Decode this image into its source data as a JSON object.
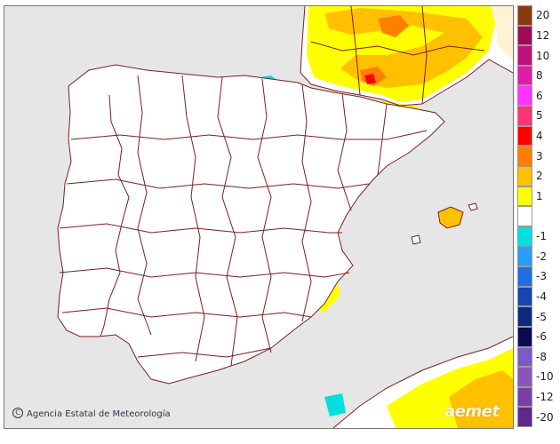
{
  "credit": {
    "text": "Agencia Estatal de Meteorología",
    "icon": "copyright-icon"
  },
  "logo": {
    "text": "aemet"
  },
  "legend": {
    "entries": [
      {
        "label": "20",
        "color": "#8b3a0e"
      },
      {
        "label": "12",
        "color": "#a00a55"
      },
      {
        "label": "10",
        "color": "#c0107a"
      },
      {
        "label": "8",
        "color": "#e01caa"
      },
      {
        "label": "6",
        "color": "#ff33ff"
      },
      {
        "label": "5",
        "color": "#ff3377"
      },
      {
        "label": "4",
        "color": "#ff0000"
      },
      {
        "label": "3",
        "color": "#ff8000"
      },
      {
        "label": "2",
        "color": "#ffc000"
      },
      {
        "label": "1",
        "color": "#ffff00"
      },
      {
        "label": "",
        "color": "#ffffff"
      },
      {
        "label": "-1",
        "color": "#00e0e0"
      },
      {
        "label": "-2",
        "color": "#2a9df4"
      },
      {
        "label": "-3",
        "color": "#1e6fe0"
      },
      {
        "label": "-4",
        "color": "#1746b0"
      },
      {
        "label": "-5",
        "color": "#0c2a80"
      },
      {
        "label": "-6",
        "color": "#0a0a55"
      },
      {
        "label": "-8",
        "color": "#7a5bc8"
      },
      {
        "label": "-10",
        "color": "#8855bb"
      },
      {
        "label": "-12",
        "color": "#7a3fa6"
      },
      {
        "label": "-20",
        "color": "#5e2a8a"
      }
    ]
  },
  "colors": {
    "sea": "#e6e6e6",
    "land": "#ffffff",
    "borders": "#7a1f1f",
    "warm_light": "#ffff00",
    "warm_mid": "#ffc000",
    "warm_high": "#ff8000",
    "warm_peak": "#ff0000",
    "cool_light": "#00e0e0",
    "cool_mid": "#2a9df4"
  }
}
